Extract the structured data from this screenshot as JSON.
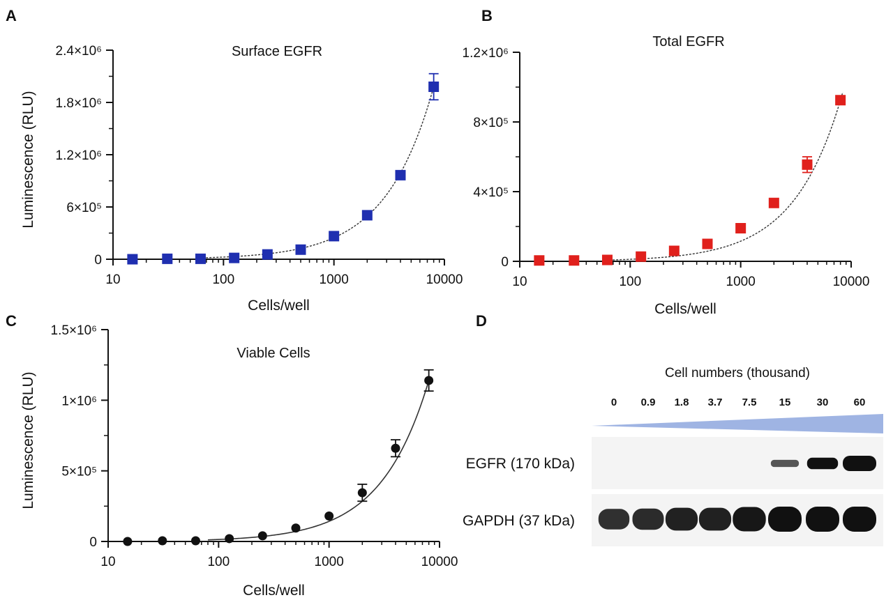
{
  "chart_data": [
    {
      "panel": "A",
      "type": "scatter",
      "title": "Surface EGFR",
      "xlabel": "Cells/well",
      "ylabel": "Luminescence (RLU)",
      "x_scale": "log",
      "xlim": [
        10,
        10000
      ],
      "ylim": [
        0,
        2400000
      ],
      "x_ticks": [
        "10",
        "100",
        "1000",
        "10000"
      ],
      "y_ticks": [
        "0",
        "6×10⁵",
        "1.2×10⁶",
        "1.8×10⁶",
        "2.4×10⁶"
      ],
      "marker": "square",
      "color": "#1f2fb0",
      "fit": "exponential",
      "series": [
        {
          "x": [
            15,
            31,
            62,
            125,
            250,
            500,
            1000,
            2000,
            4000,
            8000
          ],
          "y": [
            0,
            5000,
            5000,
            15000,
            55000,
            110000,
            265000,
            505000,
            965000,
            1980000
          ],
          "err": [
            0,
            0,
            0,
            0,
            0,
            0,
            0,
            0,
            0,
            150000
          ]
        }
      ]
    },
    {
      "panel": "B",
      "type": "scatter",
      "title": "Total EGFR",
      "xlabel": "Cells/well",
      "ylabel": "",
      "x_scale": "log",
      "xlim": [
        10,
        10000
      ],
      "ylim": [
        0,
        1200000
      ],
      "x_ticks": [
        "10",
        "100",
        "1000",
        "10000"
      ],
      "y_ticks": [
        "0",
        "4×10⁵",
        "8×10⁵",
        "1.2×10⁶"
      ],
      "marker": "square",
      "color": "#e0201c",
      "fit": "exponential",
      "series": [
        {
          "x": [
            15,
            31,
            62,
            125,
            250,
            500,
            1000,
            2000,
            4000,
            8000
          ],
          "y": [
            5000,
            5000,
            8000,
            27000,
            60000,
            100000,
            190000,
            335000,
            555000,
            925000
          ],
          "err": [
            0,
            0,
            0,
            0,
            0,
            0,
            0,
            0,
            45000,
            0
          ]
        }
      ]
    },
    {
      "panel": "C",
      "type": "scatter",
      "title": "Viable Cells",
      "xlabel": "Cells/well",
      "ylabel": "Luminescence (RLU)",
      "x_scale": "log",
      "xlim": [
        10,
        10000
      ],
      "ylim": [
        0,
        1500000
      ],
      "x_ticks": [
        "10",
        "100",
        "1000",
        "10000"
      ],
      "y_ticks": [
        "0",
        "5×10⁵",
        "1×10⁶",
        "1.5×10⁶"
      ],
      "marker": "circle",
      "color": "#111111",
      "fit": "exponential",
      "series": [
        {
          "x": [
            15,
            31,
            62,
            125,
            250,
            500,
            1000,
            2000,
            4000,
            8000
          ],
          "y": [
            0,
            5000,
            5000,
            20000,
            40000,
            95000,
            180000,
            345000,
            660000,
            1140000
          ],
          "err": [
            0,
            0,
            0,
            0,
            0,
            0,
            0,
            60000,
            60000,
            75000
          ]
        }
      ]
    }
  ],
  "panels": {
    "A": "A",
    "B": "B",
    "C": "C",
    "D": "D"
  },
  "western_blot": {
    "header": "Cell numbers (thousand)",
    "lanes": [
      "0",
      "0.9",
      "1.8",
      "3.7",
      "7.5",
      "15",
      "30",
      "60"
    ],
    "rows": [
      {
        "label": "EGFR (170 kDa)",
        "intensity": [
          0,
          0,
          0,
          0,
          0,
          0.35,
          0.7,
          1
        ]
      },
      {
        "label": "GAPDH (37 kDa)",
        "intensity": [
          0.7,
          0.75,
          0.85,
          0.85,
          0.95,
          1,
          1,
          1
        ]
      }
    ],
    "colors": {
      "wedge": "#9fb4e3",
      "band": "#111111",
      "membrane": "#f4f4f4"
    }
  }
}
